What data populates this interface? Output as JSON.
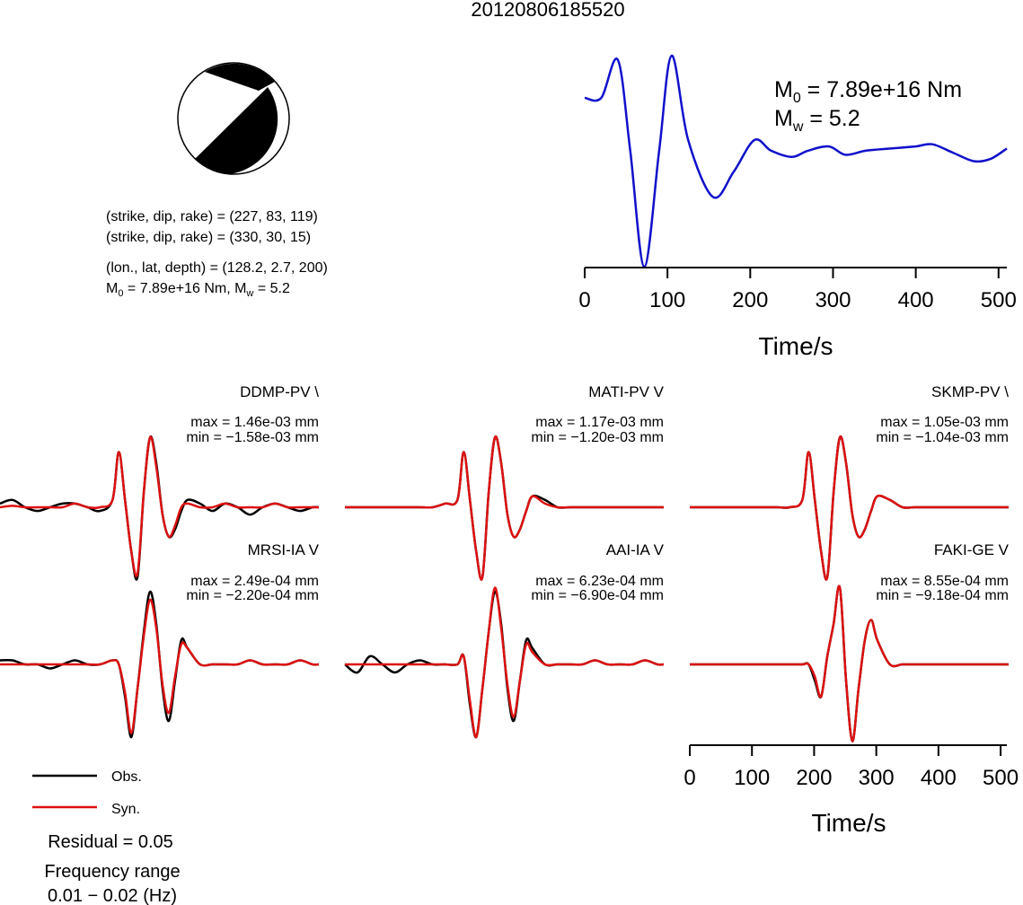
{
  "title": "20120806185520",
  "mechanism": {
    "line1": "(strike, dip, rake) = (227, 83, 119)",
    "line2": "(strike, dip, rake) = (330, 30, 15)",
    "line3": "(lon., lat, depth) = (128.2, 2.7, 200)",
    "m0_prefix": "M",
    "m0_sub": "0",
    "m0_value": " = 7.89e+16 Nm, M",
    "mw_sub": "w",
    "mw_value": " = 5.2"
  },
  "stf": {
    "m0_symbol": "M",
    "m0_sub": "0",
    "m0_text": " = 7.89e+16 Nm",
    "mw_symbol": "M",
    "mw_sub": "w",
    "mw_text": " = 5.2",
    "xlabel": "Time/s",
    "xticks": [
      "0",
      "100",
      "200",
      "300",
      "400",
      "500"
    ],
    "color": "#1010cc"
  },
  "stations": [
    {
      "name": "DDMP-PV \\",
      "max": "max = 1.46e-03 mm",
      "min": "min = −1.58e-03 mm"
    },
    {
      "name": "MATI-PV V",
      "max": "max = 1.17e-03 mm",
      "min": "min = −1.20e-03 mm"
    },
    {
      "name": "SKMP-PV \\",
      "max": "max = 1.05e-03 mm",
      "min": "min = −1.04e-03 mm"
    },
    {
      "name": "MRSI-IA V",
      "max": "max = 2.49e-04 mm",
      "min": "min = −2.20e-04 mm"
    },
    {
      "name": "AAI-IA V",
      "max": "max = 6.23e-04 mm",
      "min": "min = −6.90e-04 mm"
    },
    {
      "name": "FAKI-GE V",
      "max": "max = 8.55e-04 mm",
      "min": "min = −9.18e-04 mm"
    }
  ],
  "waveform_axis": {
    "xlabel": "Time/s",
    "xticks": [
      "0",
      "100",
      "200",
      "300",
      "400",
      "500"
    ]
  },
  "legend": {
    "obs_label": "Obs.",
    "syn_label": "Syn.",
    "obs_color": "#000000",
    "syn_color": "#dd1111"
  },
  "residual": "Residual = 0.05",
  "freq_label": "Frequency range",
  "freq_value": "0.01 − 0.02 (Hz)",
  "chart_data": [
    {
      "type": "line",
      "description_series": "source time function",
      "x": [
        0,
        20,
        40,
        55,
        72,
        90,
        105,
        125,
        155,
        180,
        205,
        225,
        250,
        270,
        295,
        315,
        340,
        370,
        400,
        420,
        445,
        470,
        490,
        510
      ],
      "series": [
        {
          "values": [
            0.8,
            0.8,
            0.98,
            0.55,
            0.0,
            0.55,
            1.0,
            0.6,
            0.33,
            0.45,
            0.6,
            0.55,
            0.52,
            0.55,
            0.57,
            0.53,
            0.55,
            0.56,
            0.57,
            0.58,
            0.54,
            0.5,
            0.51,
            0.56
          ]
        }
      ],
      "xlim": [
        0,
        510
      ],
      "xlabel": "Time/s"
    },
    {
      "type": "line",
      "x": [
        0,
        20,
        40,
        60,
        80,
        100,
        120,
        140,
        160,
        180,
        190,
        200,
        210,
        220,
        230,
        240,
        250,
        260,
        270,
        280,
        290,
        300,
        320,
        340,
        360,
        380,
        400,
        420,
        440,
        460,
        480,
        500,
        510
      ],
      "xlim": [
        0,
        510
      ],
      "xlabel": "Time/s",
      "panels": [
        {
          "station": "DDMP-PV \\",
          "series": [
            {
              "name": "Obs.",
              "values": [
                0.05,
                0.1,
                0.0,
                -0.05,
                0.0,
                0.05,
                0.05,
                0.0,
                -0.05,
                0.1,
                0.75,
                0.1,
                -0.6,
                -0.95,
                0.2,
                0.95,
                0.6,
                -0.1,
                -0.4,
                -0.3,
                -0.05,
                0.1,
                0.05,
                -0.05,
                0.05,
                0.0,
                -0.1,
                0.0,
                0.05,
                0.0,
                -0.05,
                0.0,
                0.0
              ]
            },
            {
              "name": "Syn.",
              "values": [
                0.0,
                0.02,
                0.0,
                0.0,
                0.0,
                0.0,
                0.05,
                0.0,
                0.0,
                0.1,
                0.75,
                0.1,
                -0.6,
                -0.9,
                0.2,
                0.95,
                0.55,
                -0.1,
                -0.4,
                -0.25,
                0.0,
                0.05,
                0.0,
                0.0,
                0.05,
                0.0,
                0.0,
                0.0,
                0.05,
                0.0,
                0.0,
                0.0,
                0.0
              ]
            }
          ]
        },
        {
          "station": "MATI-PV V",
          "series": [
            {
              "name": "Obs.",
              "values": [
                0.0,
                0.0,
                0.0,
                0.0,
                0.0,
                0.0,
                0.0,
                0.0,
                0.05,
                0.1,
                0.75,
                0.1,
                -0.6,
                -0.95,
                0.2,
                0.95,
                0.6,
                -0.1,
                -0.4,
                -0.3,
                -0.05,
                0.15,
                0.1,
                0.0,
                0.0,
                0.0,
                0.0,
                0.0,
                0.0,
                0.0,
                0.0,
                0.0,
                0.0
              ]
            },
            {
              "name": "Syn.",
              "values": [
                0.0,
                0.0,
                0.0,
                0.0,
                0.0,
                0.0,
                0.0,
                0.0,
                0.05,
                0.1,
                0.75,
                0.1,
                -0.6,
                -0.95,
                0.2,
                0.95,
                0.6,
                -0.1,
                -0.4,
                -0.3,
                -0.05,
                0.15,
                0.05,
                0.0,
                0.0,
                0.0,
                0.0,
                0.0,
                0.0,
                0.0,
                0.0,
                0.0,
                0.0
              ]
            }
          ]
        },
        {
          "station": "SKMP-PV \\",
          "series": [
            {
              "name": "Obs.",
              "values": [
                0.0,
                0.0,
                0.0,
                0.0,
                0.0,
                0.0,
                0.0,
                0.0,
                0.0,
                0.1,
                0.75,
                0.1,
                -0.6,
                -0.95,
                0.2,
                0.95,
                0.6,
                -0.1,
                -0.4,
                -0.3,
                -0.05,
                0.15,
                0.1,
                0.0,
                0.0,
                0.0,
                0.0,
                0.0,
                0.0,
                0.0,
                0.0,
                0.0,
                0.0
              ]
            },
            {
              "name": "Syn.",
              "values": [
                0.0,
                0.0,
                0.0,
                0.0,
                0.0,
                0.0,
                0.0,
                0.0,
                0.0,
                0.1,
                0.75,
                0.1,
                -0.6,
                -0.95,
                0.2,
                0.95,
                0.6,
                -0.1,
                -0.4,
                -0.3,
                -0.05,
                0.15,
                0.1,
                0.0,
                0.0,
                0.0,
                0.0,
                0.0,
                0.0,
                0.0,
                0.0,
                0.0,
                0.0
              ]
            }
          ]
        },
        {
          "station": "MRSI-IA V",
          "series": [
            {
              "name": "Obs.",
              "values": [
                0.05,
                0.05,
                0.0,
                0.0,
                -0.05,
                0.0,
                0.05,
                0.0,
                0.0,
                0.05,
                0.0,
                -0.4,
                -0.9,
                -0.3,
                0.4,
                0.9,
                0.5,
                -0.3,
                -0.7,
                -0.2,
                0.3,
                0.2,
                0.0,
                0.0,
                0.0,
                0.0,
                0.05,
                0.0,
                0.0,
                0.0,
                0.05,
                0.0,
                0.0
              ]
            },
            {
              "name": "Syn.",
              "values": [
                0.0,
                0.0,
                0.0,
                0.0,
                0.0,
                0.0,
                0.0,
                0.0,
                0.0,
                0.05,
                0.0,
                -0.35,
                -0.85,
                -0.3,
                0.35,
                0.8,
                0.45,
                -0.25,
                -0.6,
                -0.15,
                0.25,
                0.2,
                0.0,
                0.0,
                0.0,
                0.0,
                0.05,
                0.0,
                0.0,
                0.0,
                0.05,
                0.0,
                0.0
              ]
            }
          ]
        },
        {
          "station": "AAI-IA V",
          "series": [
            {
              "name": "Obs.",
              "values": [
                0.0,
                -0.1,
                0.1,
                0.0,
                -0.1,
                0.0,
                0.05,
                0.0,
                0.0,
                0.0,
                0.1,
                -0.5,
                -0.9,
                -0.3,
                0.4,
                0.9,
                0.5,
                -0.3,
                -0.7,
                -0.2,
                0.3,
                0.2,
                0.0,
                0.0,
                0.0,
                0.0,
                0.05,
                0.0,
                0.0,
                0.0,
                0.05,
                0.0,
                0.0
              ]
            },
            {
              "name": "Syn.",
              "values": [
                0.0,
                0.0,
                0.0,
                0.0,
                0.0,
                0.0,
                0.0,
                0.0,
                0.0,
                0.0,
                0.1,
                -0.45,
                -0.9,
                -0.3,
                0.4,
                0.95,
                0.45,
                -0.25,
                -0.65,
                -0.2,
                0.25,
                0.15,
                0.0,
                0.0,
                0.0,
                0.0,
                0.05,
                0.0,
                0.0,
                0.0,
                0.05,
                0.0,
                0.0
              ]
            }
          ]
        },
        {
          "station": "FAKI-GE V",
          "series": [
            {
              "name": "Obs.",
              "values": [
                0.0,
                0.0,
                0.0,
                0.0,
                0.0,
                0.0,
                0.0,
                0.0,
                0.0,
                0.0,
                0.0,
                -0.2,
                -0.4,
                0.1,
                0.5,
                0.95,
                -0.2,
                -0.95,
                -0.3,
                0.3,
                0.55,
                0.3,
                0.0,
                0.0,
                0.0,
                0.0,
                0.0,
                0.0,
                0.0,
                0.0,
                0.0,
                0.0,
                0.0
              ]
            },
            {
              "name": "Syn.",
              "values": [
                0.0,
                0.0,
                0.0,
                0.0,
                0.0,
                0.0,
                0.0,
                0.0,
                0.0,
                0.0,
                0.0,
                -0.15,
                -0.4,
                0.1,
                0.5,
                0.95,
                -0.2,
                -0.95,
                -0.3,
                0.3,
                0.55,
                0.3,
                0.0,
                0.0,
                0.0,
                0.0,
                0.0,
                0.0,
                0.0,
                0.0,
                0.0,
                0.0,
                0.0
              ]
            }
          ]
        }
      ]
    }
  ]
}
